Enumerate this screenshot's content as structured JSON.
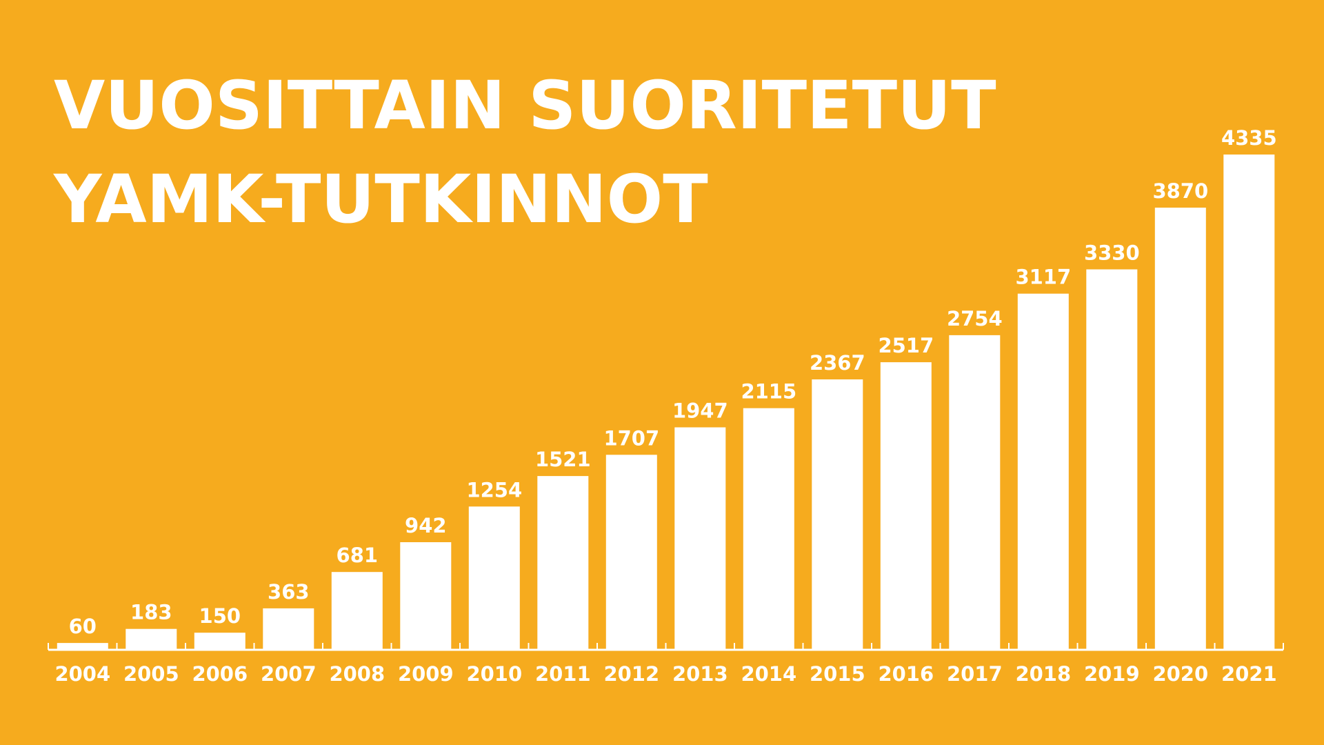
{
  "colors": {
    "background": "#F6AB1E",
    "foreground": "#FFFFFF"
  },
  "chart_data": {
    "type": "bar",
    "title": "VUOSITTAIN SUORITETUT YAMK-TUTKINNOT",
    "title_lines": [
      "VUOSITTAIN SUORITETUT",
      "YAMK-TUTKINNOT"
    ],
    "xlabel": "",
    "ylabel": "",
    "ylim": [
      0,
      4335
    ],
    "grid": false,
    "legend": "none",
    "categories": [
      "2004",
      "2005",
      "2006",
      "2007",
      "2008",
      "2009",
      "2010",
      "2011",
      "2012",
      "2013",
      "2014",
      "2015",
      "2016",
      "2017",
      "2018",
      "2019",
      "2020",
      "2021"
    ],
    "values": [
      60,
      183,
      150,
      363,
      681,
      942,
      1254,
      1521,
      1707,
      1947,
      2115,
      2367,
      2517,
      2754,
      3117,
      3330,
      3870,
      4335
    ]
  }
}
